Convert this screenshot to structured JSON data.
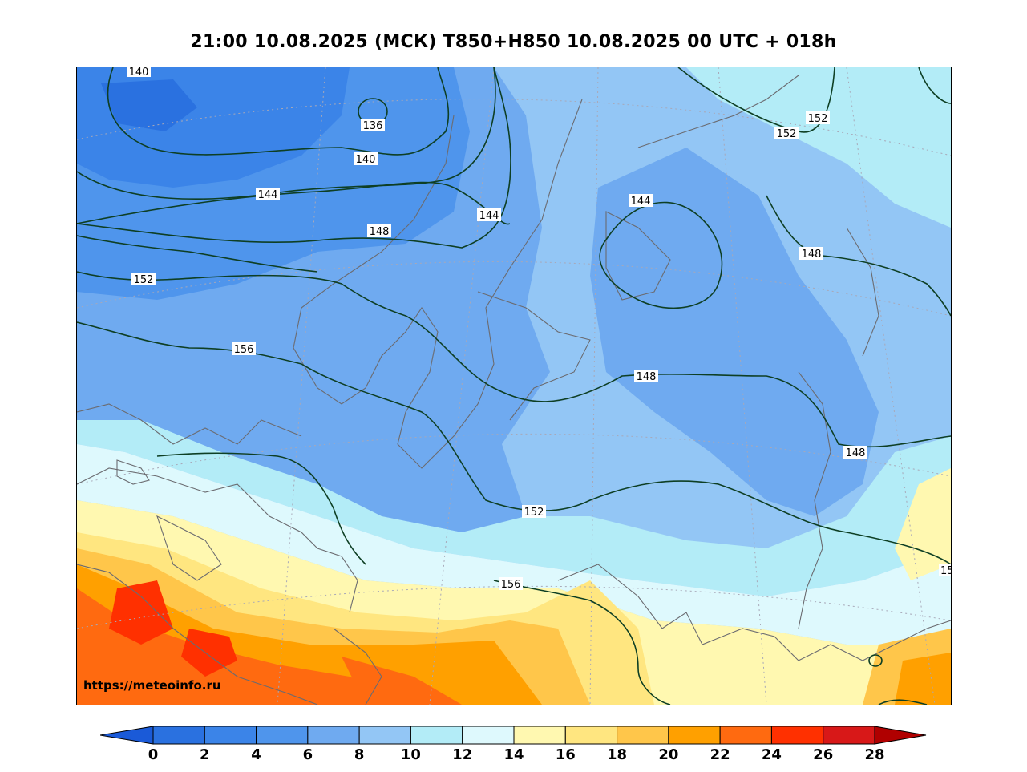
{
  "title": "21:00 10.08.2025 (МСК) T850+H850 10.08.2025 00 UTC + 018h",
  "watermark": "https://meteoinfo.ru",
  "colorbar": {
    "ticks": [
      "0",
      "2",
      "4",
      "6",
      "8",
      "10",
      "12",
      "14",
      "16",
      "18",
      "20",
      "22",
      "24",
      "26",
      "28"
    ],
    "colors": [
      "#2a71e0",
      "#3b84e8",
      "#4f95ec",
      "#6faaf0",
      "#93c6f5",
      "#b3ecf7",
      "#def9fd",
      "#fff8b0",
      "#ffe680",
      "#ffc64a",
      "#ffa000",
      "#ff6a10",
      "#ff3000",
      "#d81818",
      "#b80e0e"
    ],
    "under_color": "#1a5ad8",
    "over_color": "#b00000"
  },
  "contours": {
    "unit": "dam",
    "labels": [
      "136",
      "140",
      "140",
      "144",
      "144",
      "144",
      "148",
      "148",
      "148",
      "148",
      "152",
      "152",
      "152",
      "152",
      "156",
      "156",
      "15"
    ]
  }
}
